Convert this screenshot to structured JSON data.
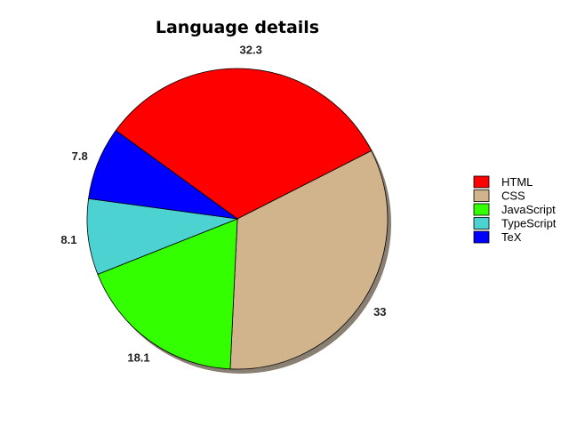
{
  "chart_data": {
    "type": "pie",
    "title": "Language details",
    "legend_position": "right",
    "slices": [
      {
        "label": "HTML",
        "value": 32.3,
        "value_label": "32.3",
        "color": "#ff0000"
      },
      {
        "label": "CSS",
        "value": 33,
        "value_label": "33",
        "color": "#d2b48c"
      },
      {
        "label": "JavaScript",
        "value": 18.1,
        "value_label": "18.1",
        "color": "#33ff00"
      },
      {
        "label": "TypeScript",
        "value": 8.1,
        "value_label": "8.1",
        "color": "#4dd2d2"
      },
      {
        "label": "TeX",
        "value": 7.8,
        "value_label": "7.8",
        "color": "#0000ff"
      }
    ]
  }
}
